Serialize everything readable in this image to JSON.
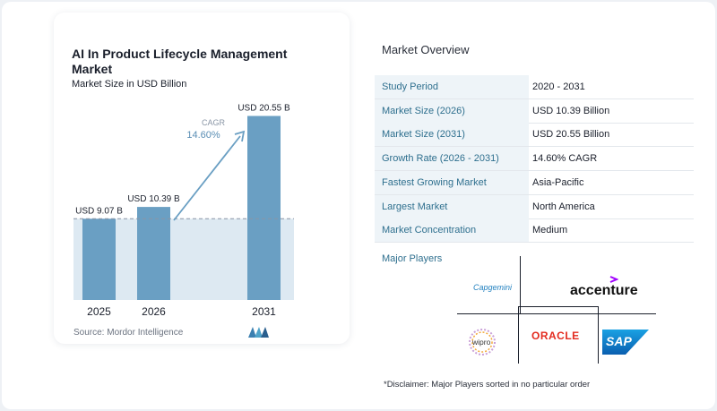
{
  "chart_data": {
    "type": "bar",
    "title": "AI In Product Lifecycle Management Market",
    "subtitle": "Market Size in USD Billion",
    "categories": [
      "2025",
      "2026",
      "2031"
    ],
    "values": [
      9.07,
      10.39,
      20.55
    ],
    "value_labels": [
      "USD 9.07 B",
      "USD 10.39 B",
      "USD 20.55 B"
    ],
    "cagr_label": "CAGR",
    "cagr_value": "14.60%",
    "ylim": [
      0,
      22
    ],
    "reference_value": 9.07,
    "colors": {
      "bar": "#6a9fc3",
      "bar_dark": "#5a8eb4",
      "band": "#dde9f2",
      "arrow": "#6a9fc3"
    }
  },
  "source": "Source:  Mordor Intelligence",
  "overview": {
    "title": "Market Overview",
    "rows": [
      {
        "key": "Study Period",
        "value": "2020 - 2031"
      },
      {
        "key": "Market Size (2026)",
        "value": "USD 10.39 Billion"
      },
      {
        "key": "Market Size (2031)",
        "value": "USD 20.55 Billion"
      },
      {
        "key": "Growth Rate (2026 - 2031)",
        "value": "14.60% CAGR"
      },
      {
        "key": "Fastest Growing Market",
        "value": "Asia-Pacific"
      },
      {
        "key": "Largest Market",
        "value": "North America"
      },
      {
        "key": "Market Concentration",
        "value": "Medium"
      }
    ]
  },
  "players": {
    "title": "Major Players",
    "logos": [
      "Capgemini",
      "accenture",
      "wipro",
      "ORACLE",
      "SAP"
    ]
  },
  "disclaimer": "*Disclaimer: Major Players sorted in no particular order"
}
